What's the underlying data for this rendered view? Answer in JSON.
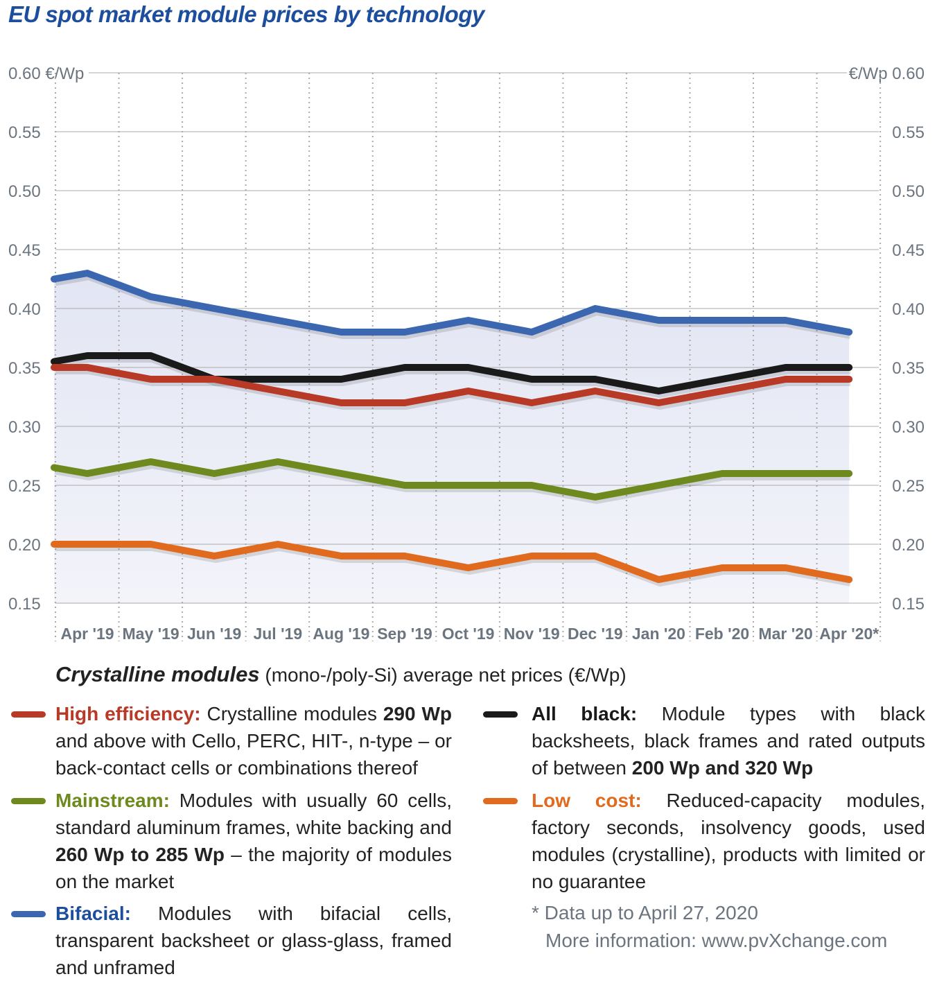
{
  "title": "EU spot market module prices  by technology",
  "chart_data": {
    "type": "line",
    "title": "EU spot market module prices  by technology",
    "y_unit_left": "0.60 €/Wp",
    "y_unit_right": "€/Wp 0.60",
    "ylim": [
      0.15,
      0.6
    ],
    "yticks": [
      "0.60",
      "0.55",
      "0.50",
      "0.45",
      "0.40",
      "0.35",
      "0.30",
      "0.25",
      "0.20",
      "0.15"
    ],
    "categories": [
      "",
      "Apr '19",
      "May '19",
      "Jun '19",
      "Jul '19",
      "Aug '19",
      "Sep '19",
      "Oct '19",
      "Nov '19",
      "Dec '19",
      "Jan '20",
      "Feb '20",
      "Mar '20",
      "Apr '20*"
    ],
    "grid": true,
    "series": [
      {
        "name": "Bifacial",
        "color": "#3a67b0",
        "values": [
          0.425,
          0.43,
          0.41,
          0.4,
          0.39,
          0.38,
          0.38,
          0.39,
          0.38,
          0.4,
          0.39,
          0.39,
          0.39,
          0.38
        ]
      },
      {
        "name": "All black",
        "color": "#1a1a1a",
        "values": [
          0.355,
          0.36,
          0.36,
          0.34,
          0.34,
          0.34,
          0.35,
          0.35,
          0.34,
          0.34,
          0.33,
          0.34,
          0.35,
          0.35
        ]
      },
      {
        "name": "High efficiency",
        "color": "#b83a26",
        "values": [
          0.35,
          0.35,
          0.34,
          0.34,
          0.33,
          0.32,
          0.32,
          0.33,
          0.32,
          0.33,
          0.32,
          0.33,
          0.34,
          0.34
        ]
      },
      {
        "name": "Mainstream",
        "color": "#6e8a1e",
        "values": [
          0.265,
          0.26,
          0.27,
          0.26,
          0.27,
          0.26,
          0.25,
          0.25,
          0.25,
          0.24,
          0.25,
          0.26,
          0.26,
          0.26
        ]
      },
      {
        "name": "Low cost",
        "color": "#e06b1e",
        "values": [
          0.2,
          0.2,
          0.2,
          0.19,
          0.2,
          0.19,
          0.19,
          0.18,
          0.19,
          0.19,
          0.17,
          0.18,
          0.18,
          0.17
        ]
      }
    ]
  },
  "subtitle": {
    "bold": "Crystalline modules",
    "rest": " (mono-/poly-Si) average net prices (€/Wp)"
  },
  "legend": [
    {
      "label": "High efficiency:",
      "color": "#b83a26",
      "label_color": "#b83a26",
      "parts": [
        " Crystalline modules ",
        "290 Wp",
        " and above with Cello, PERC, HIT-, n-type – or back-contact cells or combinations thereof"
      ]
    },
    {
      "label": "Mainstream:",
      "color": "#6e8a1e",
      "label_color": "#6e8a1e",
      "parts": [
        " Modules with usually 60 cells, standard aluminum frames, white backing and ",
        "260 Wp to 285 Wp",
        " – the majority of modules on the market"
      ]
    },
    {
      "label": "Bifacial:",
      "color": "#3a67b0",
      "label_color": "#1d4e9e",
      "parts": [
        " Modules with bifacial cells, transparent backsheet or glass-glass, framed and unframed",
        "",
        ""
      ]
    },
    {
      "label": "All black:",
      "color": "#1a1a1a",
      "label_color": "#1a1a1a",
      "parts": [
        " Module types with black backsheets, black frames and rated outputs of between ",
        "200 Wp and 320 Wp",
        ""
      ]
    },
    {
      "label": "Low cost:",
      "color": "#e06b1e",
      "label_color": "#e06b1e",
      "parts": [
        " Reduced-capacity modules, factory seconds, insolvency goods, used modules (crystalline), products with limited or no guarantee",
        "",
        ""
      ]
    }
  ],
  "notes": [
    "* Data up to April 27, 2020",
    "More information: www.pvXchange.com"
  ]
}
